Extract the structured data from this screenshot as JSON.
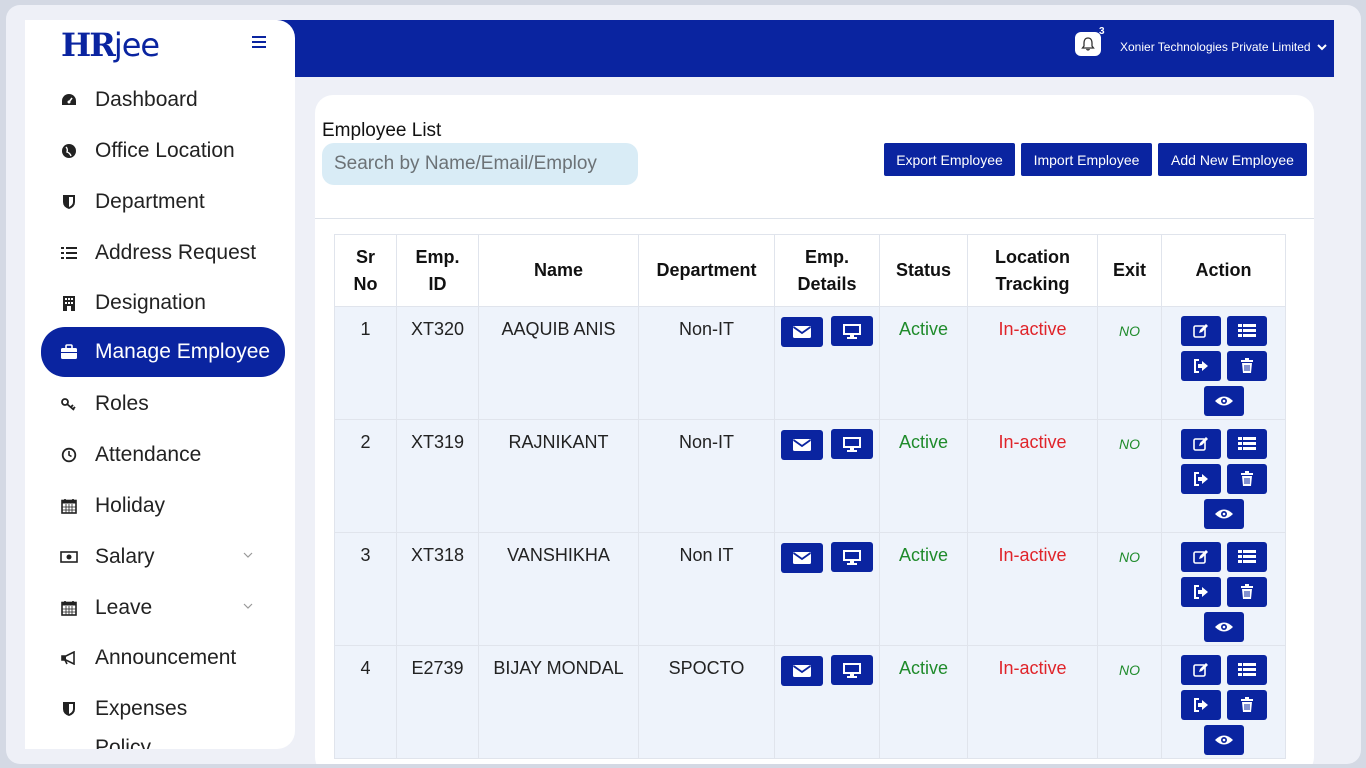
{
  "app": {
    "logo_main": "HR",
    "logo_suffix": "jee"
  },
  "header": {
    "notification_count": "3",
    "company_name": "Xonier Technologies Private Limited"
  },
  "sidebar": {
    "items": [
      {
        "label": "Dashboard",
        "icon": "dashboard-icon"
      },
      {
        "label": "Office Location",
        "icon": "globe-icon"
      },
      {
        "label": "Department",
        "icon": "shield-icon"
      },
      {
        "label": "Address Request",
        "icon": "list-icon"
      },
      {
        "label": "Designation",
        "icon": "building-icon"
      },
      {
        "label": "Manage Employee",
        "icon": "briefcase-icon"
      },
      {
        "label": "Roles",
        "icon": "key-icon"
      },
      {
        "label": "Attendance",
        "icon": "clock-icon"
      },
      {
        "label": "Holiday",
        "icon": "calendar-icon"
      },
      {
        "label": "Salary",
        "icon": "money-icon"
      },
      {
        "label": "Leave",
        "icon": "calendar-icon"
      },
      {
        "label": "Announcement",
        "icon": "megaphone-icon"
      },
      {
        "label": "Expenses",
        "icon": "shield-icon"
      },
      {
        "label": "Policy Management",
        "icon": "document-icon"
      }
    ]
  },
  "main": {
    "title": "Employee List",
    "search_placeholder": "Search by Name/Email/Employ",
    "buttons": {
      "export": "Export Employee",
      "import": "Import Employee",
      "add_new": "Add New Employee"
    },
    "table": {
      "headers": {
        "sr_no": "Sr No",
        "emp_id": "Emp. ID",
        "name": "Name",
        "department": "Department",
        "emp_details": "Emp. Details",
        "status": "Status",
        "location_tracking": "Location Tracking",
        "exit": "Exit",
        "action": "Action"
      },
      "rows": [
        {
          "sr": "1",
          "emp_id": "XT320",
          "name": "AAQUIB ANIS",
          "department": "Non-IT",
          "status": "Active",
          "location": "In-active",
          "exit": "NO"
        },
        {
          "sr": "2",
          "emp_id": "XT319",
          "name": "RAJNIKANT",
          "department": "Non-IT",
          "status": "Active",
          "location": "In-active",
          "exit": "NO"
        },
        {
          "sr": "3",
          "emp_id": "XT318",
          "name": "VANSHIKHA",
          "department": "Non IT",
          "status": "Active",
          "location": "In-active",
          "exit": "NO"
        },
        {
          "sr": "4",
          "emp_id": "E2739",
          "name": "BIJAY MONDAL",
          "department": "SPOCTO",
          "status": "Active",
          "location": "In-active",
          "exit": "NO"
        }
      ]
    }
  },
  "colors": {
    "primary": "#0a24a0",
    "active": "#1f8b2b",
    "inactive": "#e0242a",
    "search_bg": "#d9ecf6"
  }
}
